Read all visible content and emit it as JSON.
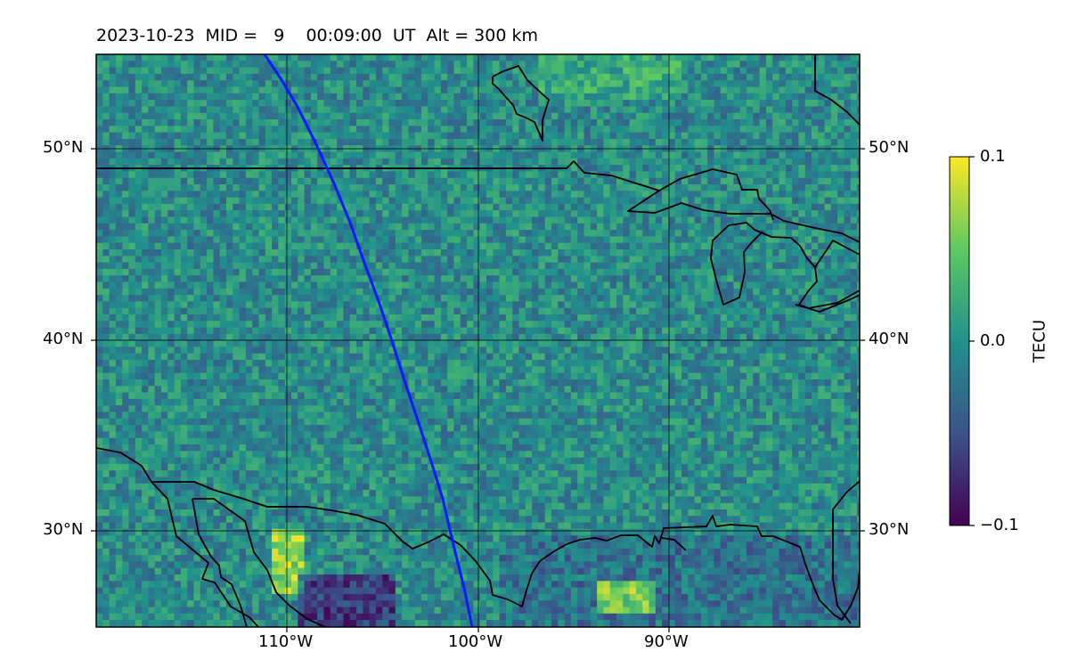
{
  "title": "2023-10-23  MID =   9    00:09:00  UT  Alt = 300 km",
  "map": {
    "lat_labels": [
      "50°N",
      "40°N",
      "30°N"
    ],
    "lon_labels": [
      "110°W",
      "100°W",
      "90°W"
    ],
    "path_color": "#0a1cff",
    "gridline_color": "#000000",
    "coastline_color": "#000000"
  },
  "colorbar": {
    "title": "TECU",
    "ticks": [
      "0.1",
      "0.0",
      "−0.1"
    ],
    "colormap": "viridis",
    "stops": [
      "#440154",
      "#3b528b",
      "#21918c",
      "#5ec962",
      "#fde725"
    ]
  }
}
